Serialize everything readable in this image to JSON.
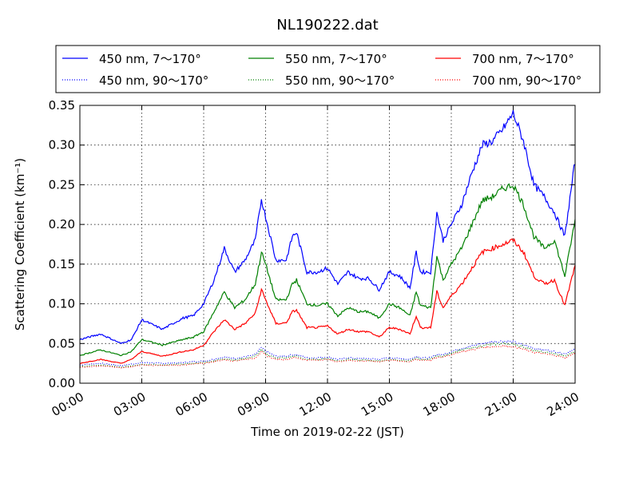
{
  "chart_data": {
    "type": "line",
    "title": "NL190222.dat",
    "xlabel": "Time on 2019-02-22 (JST)",
    "ylabel": "Scattering Coefficient (km⁻¹)",
    "xlim": [
      "00:00",
      "24:00"
    ],
    "ylim": [
      0,
      0.35
    ],
    "x_ticks": [
      "00:00",
      "03:00",
      "06:00",
      "09:00",
      "12:00",
      "15:00",
      "18:00",
      "21:00",
      "24:00"
    ],
    "y_ticks": [
      "0.00",
      "0.05",
      "0.10",
      "0.15",
      "0.20",
      "0.25",
      "0.30",
      "0.35"
    ],
    "grid": true,
    "legend_position": "top, above plot",
    "x_hours": [
      0,
      1,
      2,
      2.5,
      3,
      4,
      5,
      5.5,
      6,
      6.5,
      7,
      7.5,
      8,
      8.5,
      8.8,
      9,
      9.5,
      10,
      10.3,
      10.5,
      11,
      11.5,
      12,
      12.5,
      13,
      13.5,
      14,
      14.5,
      15,
      15.5,
      16,
      16.3,
      16.5,
      17,
      17.3,
      17.6,
      18,
      18.5,
      19,
      19.5,
      20,
      20.5,
      21,
      21.5,
      22,
      22.5,
      23,
      23.5,
      24
    ],
    "series": [
      {
        "name": "450 nm, 7～170°",
        "color": "#0000ff",
        "style": "solid",
        "values": [
          0.055,
          0.062,
          0.05,
          0.055,
          0.08,
          0.068,
          0.082,
          0.085,
          0.1,
          0.13,
          0.17,
          0.14,
          0.155,
          0.18,
          0.232,
          0.21,
          0.155,
          0.155,
          0.185,
          0.19,
          0.14,
          0.14,
          0.145,
          0.125,
          0.14,
          0.132,
          0.132,
          0.118,
          0.14,
          0.135,
          0.12,
          0.165,
          0.14,
          0.14,
          0.215,
          0.18,
          0.2,
          0.225,
          0.265,
          0.3,
          0.305,
          0.32,
          0.34,
          0.305,
          0.25,
          0.235,
          0.215,
          0.185,
          0.28
        ]
      },
      {
        "name": "550 nm, 7～170°",
        "color": "#008000",
        "style": "solid",
        "values": [
          0.035,
          0.042,
          0.035,
          0.04,
          0.055,
          0.048,
          0.055,
          0.058,
          0.065,
          0.09,
          0.115,
          0.095,
          0.105,
          0.125,
          0.165,
          0.15,
          0.105,
          0.105,
          0.125,
          0.13,
          0.1,
          0.098,
          0.1,
          0.085,
          0.095,
          0.09,
          0.09,
          0.082,
          0.1,
          0.095,
          0.085,
          0.115,
          0.098,
          0.095,
          0.16,
          0.13,
          0.15,
          0.17,
          0.2,
          0.23,
          0.235,
          0.245,
          0.25,
          0.225,
          0.185,
          0.17,
          0.18,
          0.135,
          0.205
        ]
      },
      {
        "name": "700 nm, 7～170°",
        "color": "#ff0000",
        "style": "solid",
        "values": [
          0.025,
          0.03,
          0.025,
          0.03,
          0.04,
          0.034,
          0.04,
          0.042,
          0.048,
          0.065,
          0.08,
          0.068,
          0.075,
          0.088,
          0.118,
          0.105,
          0.075,
          0.076,
          0.09,
          0.092,
          0.07,
          0.07,
          0.072,
          0.062,
          0.068,
          0.065,
          0.065,
          0.058,
          0.07,
          0.068,
          0.062,
          0.085,
          0.07,
          0.07,
          0.115,
          0.095,
          0.11,
          0.125,
          0.145,
          0.165,
          0.17,
          0.175,
          0.18,
          0.165,
          0.135,
          0.125,
          0.13,
          0.098,
          0.148
        ]
      },
      {
        "name": "450 nm, 90～170°",
        "color": "#0000ff",
        "style": "dotted",
        "values": [
          0.023,
          0.025,
          0.022,
          0.024,
          0.026,
          0.025,
          0.026,
          0.027,
          0.028,
          0.03,
          0.033,
          0.031,
          0.033,
          0.036,
          0.045,
          0.04,
          0.034,
          0.034,
          0.036,
          0.036,
          0.032,
          0.032,
          0.033,
          0.03,
          0.032,
          0.031,
          0.031,
          0.03,
          0.032,
          0.031,
          0.03,
          0.034,
          0.032,
          0.032,
          0.036,
          0.036,
          0.04,
          0.044,
          0.047,
          0.05,
          0.052,
          0.053,
          0.052,
          0.048,
          0.044,
          0.042,
          0.04,
          0.037,
          0.043
        ]
      },
      {
        "name": "550 nm, 90～170°",
        "color": "#008000",
        "style": "dotted",
        "values": [
          0.021,
          0.023,
          0.02,
          0.022,
          0.024,
          0.023,
          0.024,
          0.025,
          0.026,
          0.028,
          0.031,
          0.029,
          0.031,
          0.034,
          0.042,
          0.037,
          0.032,
          0.032,
          0.034,
          0.034,
          0.03,
          0.03,
          0.031,
          0.028,
          0.03,
          0.029,
          0.029,
          0.028,
          0.03,
          0.029,
          0.028,
          0.032,
          0.03,
          0.03,
          0.034,
          0.034,
          0.038,
          0.042,
          0.044,
          0.047,
          0.049,
          0.05,
          0.049,
          0.046,
          0.041,
          0.039,
          0.037,
          0.034,
          0.04
        ]
      },
      {
        "name": "700 nm, 90～170°",
        "color": "#ff0000",
        "style": "dotted",
        "values": [
          0.02,
          0.022,
          0.019,
          0.021,
          0.023,
          0.022,
          0.023,
          0.024,
          0.025,
          0.027,
          0.03,
          0.028,
          0.03,
          0.032,
          0.04,
          0.035,
          0.03,
          0.03,
          0.032,
          0.032,
          0.029,
          0.029,
          0.03,
          0.027,
          0.029,
          0.028,
          0.028,
          0.027,
          0.029,
          0.028,
          0.027,
          0.03,
          0.029,
          0.029,
          0.032,
          0.033,
          0.036,
          0.04,
          0.042,
          0.045,
          0.046,
          0.047,
          0.046,
          0.043,
          0.039,
          0.037,
          0.035,
          0.032,
          0.038
        ]
      }
    ]
  }
}
